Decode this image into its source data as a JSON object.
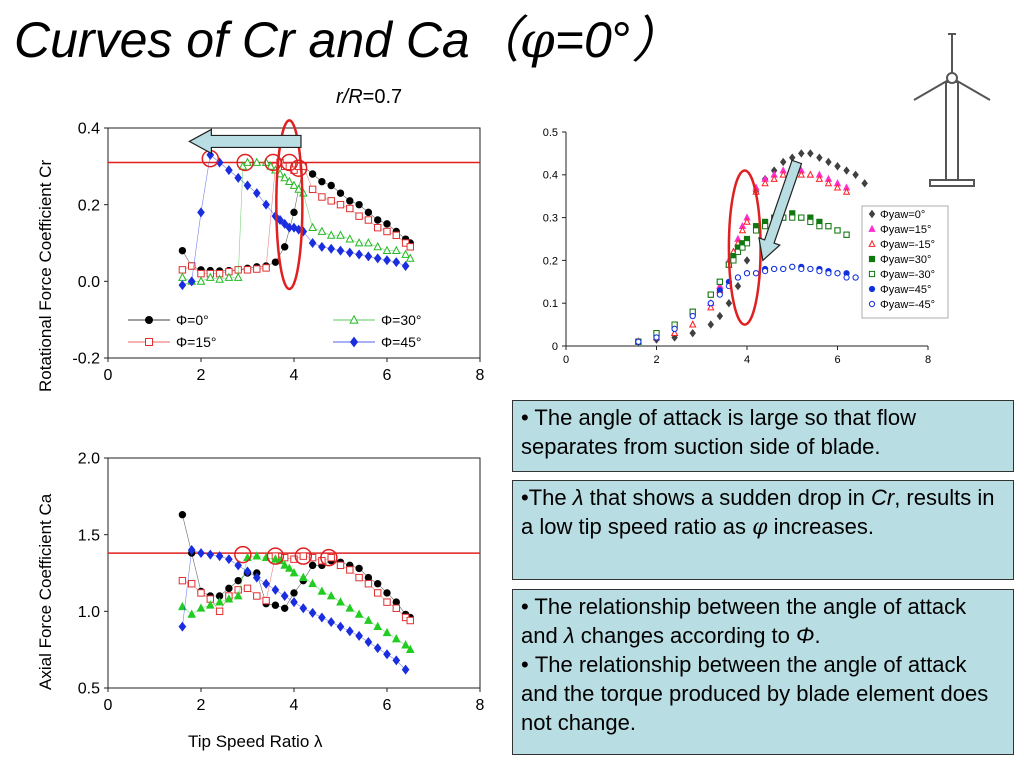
{
  "title": {
    "text": "Curves of Cr and Ca",
    "phi_symbol": "φ",
    "eq": "=0",
    "deg": "°",
    "open_paren": "（",
    "close_paren": "）"
  },
  "subtitle": {
    "r_label": "r/R",
    "value": "=0.7"
  },
  "chart_data": [
    {
      "id": "cr",
      "type": "scatter",
      "ylabel": "Rotational Force Coefficient Cr",
      "xlim": [
        0,
        8
      ],
      "ylim": [
        -0.2,
        0.4
      ],
      "xticks": [
        "0",
        "2",
        "4",
        "6",
        "8"
      ],
      "yticks": [
        "-0.2",
        "0.0",
        "0.2",
        "0.4"
      ],
      "reference_line": 0.31,
      "legend": [
        "Φ=0°",
        "Φ=30°",
        "Φ=15°",
        "Φ=45°"
      ],
      "series": [
        {
          "name": "Φ=0°",
          "marker": "filled-circle",
          "color": "#000000",
          "x": [
            1.6,
            1.8,
            2.0,
            2.2,
            2.4,
            2.6,
            2.8,
            3.0,
            3.2,
            3.4,
            3.6,
            3.8,
            4.0,
            4.2,
            4.4,
            4.6,
            4.8,
            5.0,
            5.2,
            5.4,
            5.6,
            5.8,
            6.0,
            6.2,
            6.4,
            6.5
          ],
          "y": [
            0.08,
            0.04,
            0.03,
            0.028,
            0.027,
            0.028,
            0.03,
            0.034,
            0.038,
            0.04,
            0.05,
            0.09,
            0.18,
            0.3,
            0.28,
            0.26,
            0.25,
            0.23,
            0.21,
            0.2,
            0.18,
            0.16,
            0.15,
            0.13,
            0.11,
            0.1
          ]
        },
        {
          "name": "Φ=15°",
          "marker": "open-square",
          "color": "#e03030",
          "x": [
            1.6,
            1.8,
            2.0,
            2.2,
            2.4,
            2.6,
            2.8,
            3.0,
            3.2,
            3.4,
            3.6,
            3.7,
            3.8,
            3.9,
            4.0,
            4.1,
            4.2,
            4.4,
            4.6,
            4.8,
            5.0,
            5.2,
            5.4,
            5.6,
            5.8,
            6.0,
            6.2,
            6.4,
            6.5
          ],
          "y": [
            0.03,
            0.04,
            0.02,
            0.02,
            0.02,
            0.025,
            0.03,
            0.03,
            0.032,
            0.035,
            0.3,
            0.31,
            0.3,
            0.3,
            0.29,
            0.3,
            0.3,
            0.24,
            0.22,
            0.21,
            0.2,
            0.19,
            0.17,
            0.16,
            0.14,
            0.13,
            0.12,
            0.1,
            0.09
          ]
        },
        {
          "name": "Φ=30°",
          "marker": "open-triangle",
          "color": "#22bb22",
          "x": [
            1.6,
            1.8,
            2.0,
            2.2,
            2.4,
            2.6,
            2.8,
            2.9,
            3.0,
            3.2,
            3.4,
            3.5,
            3.6,
            3.7,
            3.8,
            3.9,
            4.0,
            4.1,
            4.2,
            4.4,
            4.6,
            4.8,
            5.0,
            5.2,
            5.4,
            5.6,
            5.8,
            6.0,
            6.2,
            6.4,
            6.5
          ],
          "y": [
            0.01,
            0.0,
            0.0,
            0.01,
            0.005,
            0.01,
            0.01,
            0.3,
            0.31,
            0.31,
            0.31,
            0.3,
            0.29,
            0.28,
            0.27,
            0.26,
            0.25,
            0.24,
            0.23,
            0.14,
            0.13,
            0.12,
            0.12,
            0.11,
            0.1,
            0.1,
            0.09,
            0.08,
            0.08,
            0.07,
            0.06
          ]
        },
        {
          "name": "Φ=45°",
          "marker": "filled-diamond",
          "color": "#1a2ee0",
          "x": [
            1.6,
            1.8,
            2.0,
            2.2,
            2.4,
            2.6,
            2.8,
            3.0,
            3.2,
            3.4,
            3.6,
            3.7,
            3.8,
            3.9,
            4.0,
            4.1,
            4.2,
            4.4,
            4.6,
            4.8,
            5.0,
            5.2,
            5.4,
            5.6,
            5.8,
            6.0,
            6.2,
            6.4
          ],
          "y": [
            -0.01,
            0.0,
            0.18,
            0.33,
            0.31,
            0.29,
            0.27,
            0.25,
            0.23,
            0.2,
            0.17,
            0.16,
            0.15,
            0.14,
            0.14,
            0.135,
            0.13,
            0.1,
            0.09,
            0.085,
            0.08,
            0.075,
            0.07,
            0.065,
            0.06,
            0.055,
            0.05,
            0.04
          ]
        }
      ],
      "markers": {
        "circles": [
          [
            2.2,
            0.32
          ],
          [
            2.95,
            0.31
          ],
          [
            3.55,
            0.31
          ],
          [
            3.9,
            0.31
          ],
          [
            4.1,
            0.295
          ]
        ],
        "ellipse": {
          "cx": 3.9,
          "cy": 0.2,
          "rx": 0.28,
          "ry": 0.22
        },
        "arrow": {
          "from": 4.15,
          "to": 1.75,
          "y": 0.365
        }
      }
    },
    {
      "id": "ca",
      "type": "scatter",
      "xlabel": "Tip Speed Ratio λ",
      "ylabel": "Axial Force Coefficient Ca",
      "xlim": [
        0,
        8
      ],
      "ylim": [
        0.5,
        2.0
      ],
      "xticks": [
        "0",
        "2",
        "4",
        "6",
        "8"
      ],
      "yticks": [
        "0.5",
        "1.0",
        "1.5",
        "2.0"
      ],
      "reference_line": 1.38,
      "series": [
        {
          "name": "Φ=0°",
          "marker": "filled-circle",
          "color": "#000000",
          "x": [
            1.6,
            1.8,
            2.0,
            2.2,
            2.4,
            2.6,
            2.8,
            3.0,
            3.2,
            3.4,
            3.6,
            3.8,
            4.0,
            4.2,
            4.4,
            4.6,
            4.8,
            5.0,
            5.2,
            5.4,
            5.6,
            5.8,
            6.0,
            6.2,
            6.4,
            6.5
          ],
          "y": [
            1.63,
            1.38,
            1.13,
            1.1,
            1.1,
            1.15,
            1.2,
            1.25,
            1.25,
            1.05,
            1.04,
            1.02,
            1.12,
            1.2,
            1.3,
            1.3,
            1.33,
            1.32,
            1.3,
            1.28,
            1.22,
            1.18,
            1.12,
            1.06,
            0.98,
            0.96
          ]
        },
        {
          "name": "Φ=15°",
          "marker": "open-square",
          "color": "#e03030",
          "x": [
            1.6,
            1.8,
            2.0,
            2.2,
            2.4,
            2.6,
            2.8,
            3.0,
            3.2,
            3.4,
            3.6,
            3.8,
            4.0,
            4.2,
            4.4,
            4.6,
            4.8,
            5.0,
            5.2,
            5.4,
            5.6,
            5.8,
            6.0,
            6.2,
            6.4,
            6.5
          ],
          "y": [
            1.2,
            1.18,
            1.12,
            1.08,
            1.0,
            1.1,
            1.14,
            1.15,
            1.1,
            1.07,
            1.36,
            1.35,
            1.34,
            1.36,
            1.35,
            1.33,
            1.35,
            1.3,
            1.27,
            1.22,
            1.18,
            1.12,
            1.06,
            1.02,
            0.96,
            0.94
          ]
        },
        {
          "name": "Φ=30°",
          "marker": "filled-triangle",
          "color": "#22cc22",
          "x": [
            1.6,
            1.8,
            2.0,
            2.2,
            2.4,
            2.6,
            2.8,
            3.0,
            3.2,
            3.4,
            3.6,
            3.7,
            3.8,
            3.9,
            4.0,
            4.2,
            4.4,
            4.6,
            4.8,
            5.0,
            5.2,
            5.4,
            5.6,
            5.8,
            6.0,
            6.2,
            6.4,
            6.5
          ],
          "y": [
            1.03,
            0.98,
            1.02,
            1.04,
            1.06,
            1.08,
            1.1,
            1.35,
            1.36,
            1.35,
            1.34,
            1.33,
            1.3,
            1.28,
            1.25,
            1.22,
            1.18,
            1.13,
            1.1,
            1.06,
            1.02,
            0.98,
            0.94,
            0.9,
            0.86,
            0.82,
            0.78,
            0.75
          ]
        },
        {
          "name": "Φ=45°",
          "marker": "filled-diamond",
          "color": "#1a2ee0",
          "x": [
            1.6,
            1.8,
            2.0,
            2.2,
            2.4,
            2.6,
            2.8,
            3.0,
            3.2,
            3.4,
            3.6,
            3.8,
            4.0,
            4.2,
            4.4,
            4.6,
            4.8,
            5.0,
            5.2,
            5.4,
            5.6,
            5.8,
            6.0,
            6.2,
            6.4
          ],
          "y": [
            0.9,
            1.4,
            1.38,
            1.37,
            1.36,
            1.34,
            1.3,
            1.26,
            1.22,
            1.18,
            1.14,
            1.1,
            1.06,
            1.02,
            0.99,
            0.96,
            0.93,
            0.9,
            0.87,
            0.84,
            0.8,
            0.76,
            0.72,
            0.68,
            0.62
          ]
        }
      ],
      "markers": {
        "circles": [
          [
            2.9,
            1.37
          ],
          [
            3.6,
            1.36
          ],
          [
            4.2,
            1.36
          ],
          [
            4.75,
            1.35
          ]
        ]
      }
    },
    {
      "id": "yaw",
      "type": "scatter",
      "xlim": [
        0,
        8
      ],
      "ylim": [
        0,
        0.5
      ],
      "xticks": [
        "0",
        "2",
        "4",
        "6",
        "8"
      ],
      "yticks": [
        "0",
        "0.1",
        "0.2",
        "0.3",
        "0.4",
        "0.5"
      ],
      "legend": [
        "Φyaw=0°",
        "Φyaw=15°",
        "Φyaw=-15°",
        "Φyaw=30°",
        "Φyaw=-30°",
        "Φyaw=45°",
        "Φyaw=-45°"
      ],
      "series": [
        {
          "name": "Φyaw=0°",
          "marker": "filled-diamond",
          "color": "#404040",
          "x": [
            1.6,
            2.0,
            2.4,
            2.8,
            3.2,
            3.4,
            3.6,
            3.8,
            4.0,
            4.2,
            4.4,
            4.6,
            4.8,
            5.0,
            5.2,
            5.4,
            5.6,
            5.8,
            6.0,
            6.2,
            6.4,
            6.6
          ],
          "y": [
            0.01,
            0.015,
            0.02,
            0.03,
            0.05,
            0.07,
            0.1,
            0.14,
            0.2,
            0.36,
            0.39,
            0.41,
            0.43,
            0.44,
            0.45,
            0.45,
            0.44,
            0.43,
            0.42,
            0.41,
            0.4,
            0.38
          ]
        },
        {
          "name": "Φyaw=15°",
          "marker": "filled-triangle",
          "color": "#ff2fcf",
          "x": [
            1.6,
            2.0,
            2.4,
            2.8,
            3.2,
            3.4,
            3.6,
            3.7,
            3.8,
            3.9,
            4.0,
            4.2,
            4.4,
            4.6,
            4.8,
            5.0,
            5.2,
            5.4,
            5.6,
            5.8,
            6.0,
            6.2
          ],
          "y": [
            0.01,
            0.02,
            0.03,
            0.05,
            0.1,
            0.14,
            0.2,
            0.22,
            0.25,
            0.28,
            0.3,
            0.37,
            0.39,
            0.4,
            0.41,
            0.41,
            0.41,
            0.4,
            0.4,
            0.39,
            0.38,
            0.37
          ]
        },
        {
          "name": "Φyaw=-15°",
          "marker": "open-triangle",
          "color": "#ff2020",
          "x": [
            1.6,
            2.0,
            2.4,
            2.8,
            3.2,
            3.4,
            3.6,
            3.7,
            3.8,
            3.9,
            4.0,
            4.2,
            4.4,
            4.6,
            4.8,
            5.0,
            5.2,
            5.4,
            5.6,
            5.8,
            6.0,
            6.2
          ],
          "y": [
            0.01,
            0.02,
            0.03,
            0.05,
            0.09,
            0.13,
            0.19,
            0.22,
            0.24,
            0.27,
            0.29,
            0.36,
            0.38,
            0.39,
            0.4,
            0.41,
            0.4,
            0.4,
            0.39,
            0.38,
            0.37,
            0.36
          ]
        },
        {
          "name": "Φyaw=30°",
          "marker": "filled-square",
          "color": "#117711",
          "x": [
            1.6,
            2.0,
            2.4,
            2.8,
            3.2,
            3.4,
            3.6,
            3.7,
            3.8,
            3.9,
            4.0,
            4.2,
            4.4,
            4.6,
            4.8,
            5.0,
            5.2,
            5.4,
            5.6,
            5.8,
            6.0,
            6.2
          ],
          "y": [
            0.01,
            0.03,
            0.05,
            0.08,
            0.12,
            0.15,
            0.19,
            0.21,
            0.23,
            0.24,
            0.25,
            0.28,
            0.29,
            0.3,
            0.3,
            0.31,
            0.3,
            0.3,
            0.29,
            0.28,
            0.27,
            0.26
          ]
        },
        {
          "name": "Φyaw=-30°",
          "marker": "open-square",
          "color": "#117711",
          "x": [
            1.6,
            2.0,
            2.4,
            2.8,
            3.2,
            3.4,
            3.6,
            3.7,
            3.8,
            3.9,
            4.0,
            4.2,
            4.4,
            4.6,
            4.8,
            5.0,
            5.2,
            5.4,
            5.6,
            5.8,
            6.0,
            6.2
          ],
          "y": [
            0.01,
            0.03,
            0.05,
            0.08,
            0.12,
            0.15,
            0.19,
            0.2,
            0.22,
            0.23,
            0.24,
            0.27,
            0.28,
            0.29,
            0.3,
            0.3,
            0.3,
            0.29,
            0.28,
            0.28,
            0.27,
            0.26
          ]
        },
        {
          "name": "Φyaw=45°",
          "marker": "filled-circle",
          "color": "#1030e0",
          "x": [
            1.6,
            2.0,
            2.4,
            2.8,
            3.2,
            3.4,
            3.6,
            3.8,
            4.0,
            4.2,
            4.4,
            4.6,
            4.8,
            5.0,
            5.2,
            5.4,
            5.6,
            5.8,
            6.0,
            6.2,
            6.4
          ],
          "y": [
            0.01,
            0.02,
            0.04,
            0.07,
            0.1,
            0.13,
            0.15,
            0.16,
            0.17,
            0.17,
            0.18,
            0.18,
            0.18,
            0.185,
            0.185,
            0.18,
            0.18,
            0.175,
            0.17,
            0.17,
            0.16
          ]
        },
        {
          "name": "Φyaw=-45°",
          "marker": "open-circle",
          "color": "#1030e0",
          "x": [
            1.6,
            2.0,
            2.4,
            2.8,
            3.2,
            3.4,
            3.6,
            3.8,
            4.0,
            4.2,
            4.4,
            4.6,
            4.8,
            5.0,
            5.2,
            5.4,
            5.6,
            5.8,
            6.0,
            6.2,
            6.4
          ],
          "y": [
            0.01,
            0.02,
            0.04,
            0.07,
            0.1,
            0.12,
            0.14,
            0.16,
            0.17,
            0.17,
            0.175,
            0.18,
            0.18,
            0.185,
            0.18,
            0.18,
            0.175,
            0.17,
            0.17,
            0.16,
            0.16
          ]
        }
      ],
      "markers": {
        "ellipse": {
          "cx": 3.95,
          "cy": 0.23,
          "rx": 0.35,
          "ry": 0.18
        },
        "arrow": {
          "x1": 5.1,
          "y1": 0.43,
          "x2": 4.35,
          "y2": 0.2
        }
      }
    }
  ],
  "notes": [
    {
      "text": "• The angle of attack is large so that flow separates from suction side of blade."
    },
    {
      "pre": "•The ",
      "lambda": "λ",
      "mid": " that shows a sudden drop in ",
      "cr": "Cr",
      "post": ", results in a low tip speed ratio as ",
      "phi": "φ",
      "end": " increases."
    },
    {
      "l1pre": "• The relationship between the angle of attack and ",
      "lambda": "λ",
      "l1post": " changes according to ",
      "phi_cap": "Φ",
      "l1end": ".",
      "l2": "• The relationship between the angle of attack and the torque produced by blade element does not change."
    }
  ]
}
